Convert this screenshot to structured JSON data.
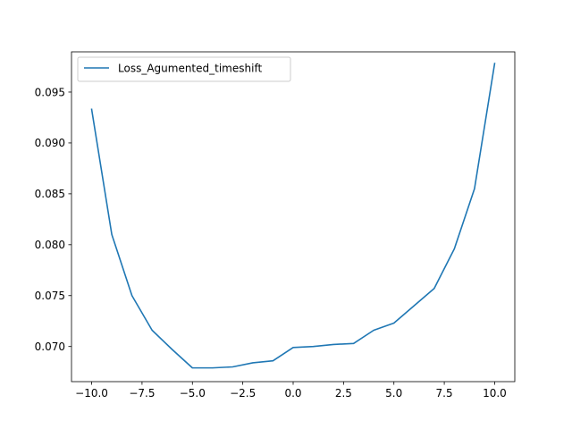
{
  "chart_data": {
    "type": "line",
    "title": "",
    "xlabel": "",
    "ylabel": "",
    "xlim": [
      -11.0,
      11.0
    ],
    "ylim": [
      0.06655,
      0.09895
    ],
    "xticks": [
      -10.0,
      -7.5,
      -5.0,
      -2.5,
      0.0,
      2.5,
      5.0,
      7.5,
      10.0
    ],
    "xtick_labels": [
      "−10.0",
      "−7.5",
      "−5.0",
      "−2.5",
      "0.0",
      "2.5",
      "5.0",
      "7.5",
      "10.0"
    ],
    "yticks": [
      0.07,
      0.075,
      0.08,
      0.085,
      0.09,
      0.095
    ],
    "ytick_labels": [
      "0.070",
      "0.075",
      "0.080",
      "0.085",
      "0.090",
      "0.095"
    ],
    "grid": false,
    "legend_position": "upper-left",
    "series": [
      {
        "name": "Loss_Agumented_timeshift",
        "color": "#1f77b4",
        "x": [
          -10,
          -9,
          -8,
          -7,
          -6,
          -5,
          -4,
          -3,
          -2,
          -1,
          0,
          1,
          2,
          3,
          4,
          5,
          6,
          7,
          8,
          9,
          10
        ],
        "values": [
          0.0933,
          0.081,
          0.075,
          0.0716,
          0.0697,
          0.0679,
          0.0679,
          0.068,
          0.0684,
          0.0686,
          0.0699,
          0.07,
          0.0702,
          0.0703,
          0.0716,
          0.0723,
          0.074,
          0.0757,
          0.0796,
          0.0855,
          0.0978
        ]
      }
    ]
  }
}
